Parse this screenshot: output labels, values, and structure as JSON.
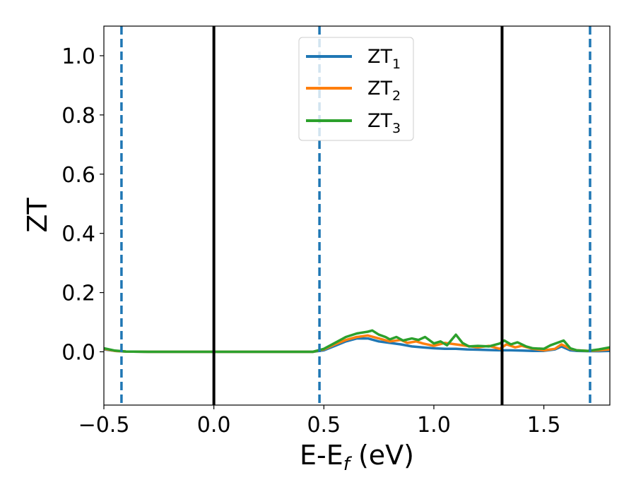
{
  "chart_data": {
    "type": "line",
    "xlabel": "E-E",
    "xlabel_sub": "f",
    "xlabel_unit": " (eV)",
    "ylabel": "ZT",
    "xlim": [
      -0.5,
      1.8
    ],
    "ylim": [
      -0.18,
      1.1
    ],
    "xticks": [
      -0.5,
      0.0,
      0.5,
      1.0,
      1.5
    ],
    "xtick_labels": [
      "−0.5",
      "0.0",
      "0.5",
      "1.0",
      "1.5"
    ],
    "yticks": [
      0.0,
      0.2,
      0.4,
      0.6,
      0.8,
      1.0
    ],
    "ytick_labels": [
      "0.0",
      "0.2",
      "0.4",
      "0.6",
      "0.8",
      "1.0"
    ],
    "legend_position": "top-center",
    "legend": [
      {
        "name": "ZT",
        "sub": "1",
        "color": "#1f77b4"
      },
      {
        "name": "ZT",
        "sub": "2",
        "color": "#ff7f0e"
      },
      {
        "name": "ZT",
        "sub": "3",
        "color": "#2ca02c"
      }
    ],
    "vlines": [
      {
        "x": -0.42,
        "style": "dashed",
        "color": "#1f77b4"
      },
      {
        "x": 0.0,
        "style": "solid",
        "color": "#000000"
      },
      {
        "x": 0.48,
        "style": "dashed",
        "color": "#1f77b4"
      },
      {
        "x": 1.31,
        "style": "solid",
        "color": "#000000"
      },
      {
        "x": 1.71,
        "style": "dashed",
        "color": "#1f77b4"
      }
    ],
    "series": [
      {
        "name": "ZT1",
        "color": "#1f77b4",
        "x": [
          -0.5,
          -0.45,
          -0.4,
          -0.3,
          0.0,
          0.3,
          0.45,
          0.5,
          0.55,
          0.6,
          0.65,
          0.7,
          0.75,
          0.8,
          0.85,
          0.9,
          0.95,
          1.0,
          1.05,
          1.1,
          1.15,
          1.2,
          1.25,
          1.3,
          1.35,
          1.4,
          1.45,
          1.5,
          1.55,
          1.58,
          1.62,
          1.65,
          1.7,
          1.75,
          1.8
        ],
        "y": [
          0.008,
          0.003,
          0.001,
          0.0,
          0.0,
          0.0,
          0.0,
          0.005,
          0.02,
          0.035,
          0.045,
          0.045,
          0.035,
          0.03,
          0.025,
          0.018,
          0.015,
          0.012,
          0.01,
          0.01,
          0.008,
          0.007,
          0.006,
          0.005,
          0.005,
          0.004,
          0.003,
          0.003,
          0.008,
          0.018,
          0.005,
          0.003,
          0.002,
          0.002,
          0.003
        ]
      },
      {
        "name": "ZT2",
        "color": "#ff7f0e",
        "x": [
          -0.5,
          -0.45,
          -0.4,
          -0.3,
          0.0,
          0.3,
          0.45,
          0.5,
          0.55,
          0.6,
          0.65,
          0.7,
          0.75,
          0.8,
          0.85,
          0.88,
          0.92,
          0.95,
          1.0,
          1.05,
          1.1,
          1.15,
          1.2,
          1.25,
          1.3,
          1.33,
          1.37,
          1.4,
          1.45,
          1.5,
          1.55,
          1.58,
          1.62,
          1.65,
          1.7,
          1.75,
          1.8
        ],
        "y": [
          0.01,
          0.003,
          0.001,
          0.0,
          0.0,
          0.0,
          0.0,
          0.008,
          0.025,
          0.04,
          0.05,
          0.055,
          0.045,
          0.035,
          0.04,
          0.03,
          0.035,
          0.028,
          0.02,
          0.03,
          0.025,
          0.02,
          0.015,
          0.02,
          0.01,
          0.025,
          0.015,
          0.02,
          0.01,
          0.005,
          0.01,
          0.025,
          0.01,
          0.005,
          0.003,
          0.005,
          0.008
        ]
      },
      {
        "name": "ZT3",
        "color": "#2ca02c",
        "x": [
          -0.5,
          -0.45,
          -0.4,
          -0.3,
          0.0,
          0.3,
          0.45,
          0.5,
          0.55,
          0.6,
          0.65,
          0.7,
          0.72,
          0.75,
          0.78,
          0.8,
          0.83,
          0.86,
          0.9,
          0.93,
          0.96,
          1.0,
          1.03,
          1.06,
          1.1,
          1.13,
          1.16,
          1.2,
          1.25,
          1.3,
          1.32,
          1.35,
          1.38,
          1.42,
          1.45,
          1.5,
          1.53,
          1.56,
          1.59,
          1.62,
          1.65,
          1.7,
          1.75,
          1.8
        ],
        "y": [
          0.012,
          0.004,
          0.001,
          0.0,
          0.0,
          0.0,
          0.0,
          0.01,
          0.03,
          0.05,
          0.062,
          0.068,
          0.072,
          0.058,
          0.05,
          0.042,
          0.05,
          0.038,
          0.045,
          0.04,
          0.05,
          0.028,
          0.035,
          0.022,
          0.058,
          0.03,
          0.018,
          0.02,
          0.018,
          0.028,
          0.038,
          0.025,
          0.032,
          0.018,
          0.012,
          0.01,
          0.022,
          0.03,
          0.038,
          0.012,
          0.005,
          0.003,
          0.008,
          0.015
        ]
      }
    ]
  }
}
